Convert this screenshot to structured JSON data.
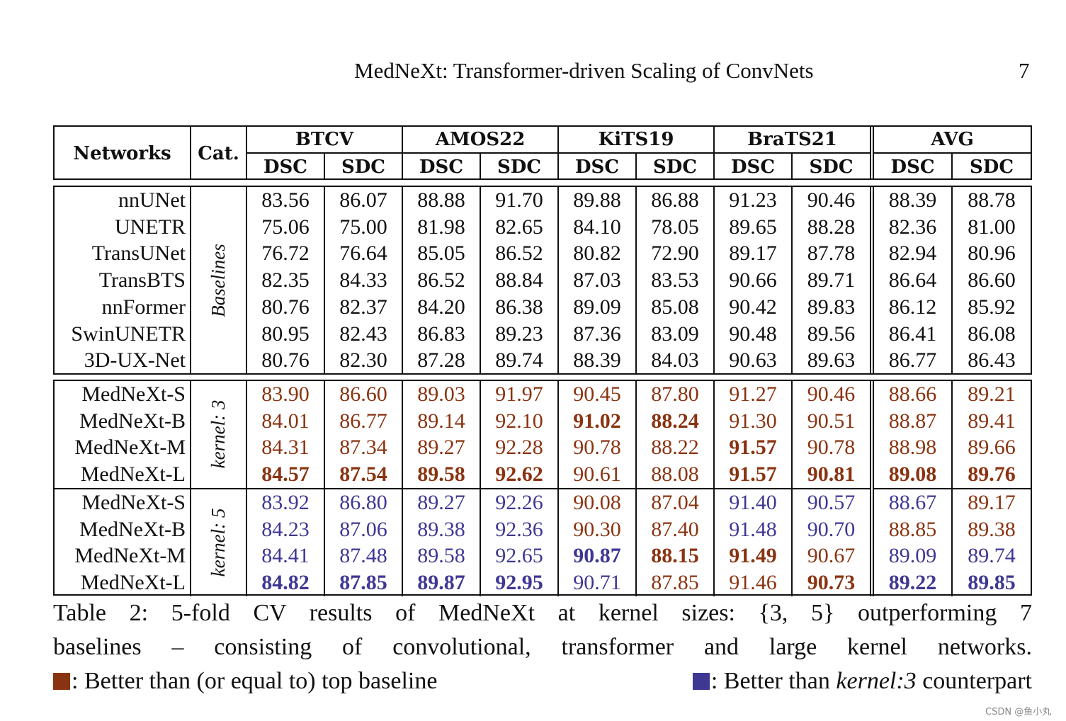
{
  "running_head": "MedNeXt: Transformer-driven Scaling of ConvNets",
  "page_number": "7",
  "colors": {
    "brown": "#8a3310",
    "blue": "#3e3793"
  },
  "table": {
    "header": {
      "networks": "Networks",
      "cat": "Cat.",
      "groups": [
        "BTCV",
        "AMOS22",
        "KiTS19",
        "BraTS21",
        "AVG"
      ],
      "metrics": [
        "DSC",
        "SDC",
        "DSC",
        "SDC",
        "DSC",
        "SDC",
        "DSC",
        "SDC",
        "DSC",
        "SDC"
      ]
    },
    "baselines": {
      "category": "Baselines",
      "rows": [
        {
          "name": "nnUNet",
          "values": [
            "83.56",
            "86.07",
            "88.88",
            "91.70",
            "89.88",
            "86.88",
            "91.23",
            "90.46",
            "88.39",
            "88.78"
          ]
        },
        {
          "name": "UNETR",
          "values": [
            "75.06",
            "75.00",
            "81.98",
            "82.65",
            "84.10",
            "78.05",
            "89.65",
            "88.28",
            "82.36",
            "81.00"
          ]
        },
        {
          "name": "TransUNet",
          "values": [
            "76.72",
            "76.64",
            "85.05",
            "86.52",
            "80.82",
            "72.90",
            "89.17",
            "87.78",
            "82.94",
            "80.96"
          ]
        },
        {
          "name": "TransBTS",
          "values": [
            "82.35",
            "84.33",
            "86.52",
            "88.84",
            "87.03",
            "83.53",
            "90.66",
            "89.71",
            "86.64",
            "86.60"
          ]
        },
        {
          "name": "nnFormer",
          "values": [
            "80.76",
            "82.37",
            "84.20",
            "86.38",
            "89.09",
            "85.08",
            "90.42",
            "89.83",
            "86.12",
            "85.92"
          ]
        },
        {
          "name": "SwinUNETR",
          "values": [
            "80.95",
            "82.43",
            "86.83",
            "89.23",
            "87.36",
            "83.09",
            "90.48",
            "89.56",
            "86.41",
            "86.08"
          ]
        },
        {
          "name": "3D-UX-Net",
          "values": [
            "80.76",
            "82.30",
            "87.28",
            "89.74",
            "88.39",
            "84.03",
            "90.63",
            "89.63",
            "86.77",
            "86.43"
          ]
        }
      ]
    },
    "kernel3": {
      "category": "kernel: 3",
      "rows": [
        {
          "name": "MedNeXt-S",
          "values": [
            "83.90",
            "86.60",
            "89.03",
            "91.97",
            "90.45",
            "87.80",
            "91.27",
            "90.46",
            "88.66",
            "89.21"
          ],
          "colors": [
            "b",
            "b",
            "b",
            "b",
            "b",
            "b",
            "b",
            "b",
            "b",
            "b"
          ],
          "bold": [
            0,
            0,
            0,
            0,
            0,
            0,
            0,
            0,
            0,
            0
          ]
        },
        {
          "name": "MedNeXt-B",
          "values": [
            "84.01",
            "86.77",
            "89.14",
            "92.10",
            "91.02",
            "88.24",
            "91.30",
            "90.51",
            "88.87",
            "89.41"
          ],
          "colors": [
            "b",
            "b",
            "b",
            "b",
            "b",
            "b",
            "b",
            "b",
            "b",
            "b"
          ],
          "bold": [
            0,
            0,
            0,
            0,
            1,
            1,
            0,
            0,
            0,
            0
          ]
        },
        {
          "name": "MedNeXt-M",
          "values": [
            "84.31",
            "87.34",
            "89.27",
            "92.28",
            "90.78",
            "88.22",
            "91.57",
            "90.78",
            "88.98",
            "89.66"
          ],
          "colors": [
            "b",
            "b",
            "b",
            "b",
            "b",
            "b",
            "b",
            "b",
            "b",
            "b"
          ],
          "bold": [
            0,
            0,
            0,
            0,
            0,
            0,
            1,
            0,
            0,
            0
          ]
        },
        {
          "name": "MedNeXt-L",
          "values": [
            "84.57",
            "87.54",
            "89.58",
            "92.62",
            "90.61",
            "88.08",
            "91.57",
            "90.81",
            "89.08",
            "89.76"
          ],
          "colors": [
            "b",
            "b",
            "b",
            "b",
            "b",
            "b",
            "b",
            "b",
            "b",
            "b"
          ],
          "bold": [
            1,
            1,
            1,
            1,
            0,
            0,
            1,
            1,
            1,
            1
          ]
        }
      ]
    },
    "kernel5": {
      "category": "kernel: 5",
      "rows": [
        {
          "name": "MedNeXt-S",
          "values": [
            "83.92",
            "86.80",
            "89.27",
            "92.26",
            "90.08",
            "87.04",
            "91.40",
            "90.57",
            "88.67",
            "89.17"
          ],
          "colors": [
            "u",
            "u",
            "u",
            "u",
            "b",
            "b",
            "u",
            "u",
            "u",
            "b"
          ],
          "bold": [
            0,
            0,
            0,
            0,
            0,
            0,
            0,
            0,
            0,
            0
          ]
        },
        {
          "name": "MedNeXt-B",
          "values": [
            "84.23",
            "87.06",
            "89.38",
            "92.36",
            "90.30",
            "87.40",
            "91.48",
            "90.70",
            "88.85",
            "89.38"
          ],
          "colors": [
            "u",
            "u",
            "u",
            "u",
            "b",
            "b",
            "u",
            "u",
            "b",
            "b"
          ],
          "bold": [
            0,
            0,
            0,
            0,
            0,
            0,
            0,
            0,
            0,
            0
          ]
        },
        {
          "name": "MedNeXt-M",
          "values": [
            "84.41",
            "87.48",
            "89.58",
            "92.65",
            "90.87",
            "88.15",
            "91.49",
            "90.67",
            "89.09",
            "89.74"
          ],
          "colors": [
            "u",
            "u",
            "u",
            "u",
            "u",
            "b",
            "b",
            "b",
            "u",
            "u"
          ],
          "bold": [
            0,
            0,
            0,
            0,
            1,
            1,
            1,
            0,
            0,
            0
          ]
        },
        {
          "name": "MedNeXt-L",
          "values": [
            "84.82",
            "87.85",
            "89.87",
            "92.95",
            "90.71",
            "87.85",
            "91.46",
            "90.73",
            "89.22",
            "89.85"
          ],
          "colors": [
            "u",
            "u",
            "u",
            "u",
            "u",
            "b",
            "b",
            "b",
            "u",
            "u"
          ],
          "bold": [
            1,
            1,
            1,
            1,
            0,
            0,
            0,
            1,
            1,
            1
          ]
        }
      ]
    }
  },
  "caption": {
    "line1": "Table 2: 5-fold CV results of MedNeXt at kernel sizes: {3, 5} outperforming 7",
    "line2": "baselines – consisting of convolutional, transformer and large kernel networks.",
    "legend_brown": ": Better than (or equal to) top baseline",
    "legend_blue_prefix": ": Better than ",
    "legend_blue_italic": "kernel:3",
    "legend_blue_suffix": " counterpart"
  },
  "watermark": "CSDN @鱼小丸"
}
